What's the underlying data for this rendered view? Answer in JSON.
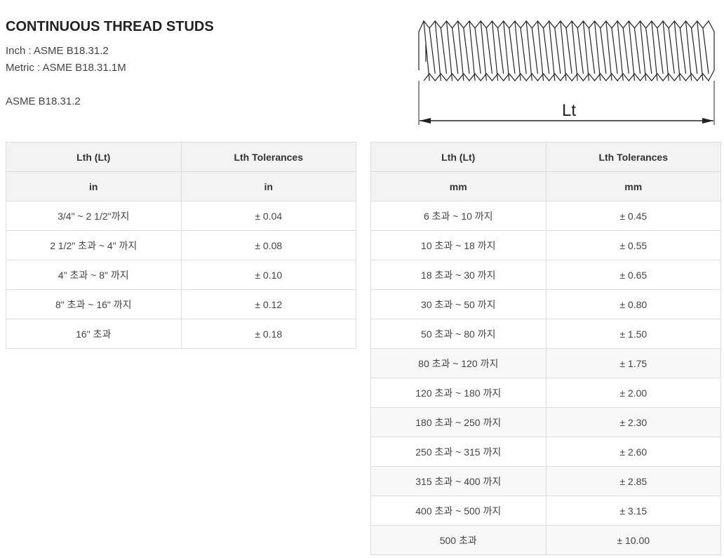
{
  "header": {
    "title": "CONTINUOUS THREAD STUDS",
    "lines": [
      "Inch : ASME B18.31.2",
      "Metric : ASME B18.31.1M"
    ],
    "subtitle": "ASME B18.31.2"
  },
  "figure": {
    "label": "Lt"
  },
  "tables": [
    {
      "columns": [
        "Lth (Lt)",
        "Lth Tolerances"
      ],
      "units": [
        "in",
        "in"
      ],
      "rows": [
        [
          "3/4\" ~ 2 1/2\"까지",
          "± 0.04"
        ],
        [
          "2 1/2\" 초과 ~ 4\" 까지",
          "± 0.08"
        ],
        [
          "4\" 초과 ~ 8\" 까지",
          "± 0.10"
        ],
        [
          "8\" 초과 ~ 16\" 까지",
          "± 0.12"
        ],
        [
          "16\" 초과",
          "± 0.18"
        ]
      ]
    },
    {
      "columns": [
        "Lth (Lt)",
        "Lth Tolerances"
      ],
      "units": [
        "mm",
        "mm"
      ],
      "rows": [
        [
          "6 초과 ~ 10 까지",
          "± 0.45"
        ],
        [
          "10 초과 ~ 18 까지",
          "± 0.55"
        ],
        [
          "18 초과 ~ 30 까지",
          "± 0.65"
        ],
        [
          "30 초과 ~ 50 까지",
          "± 0.80"
        ],
        [
          "50 초과 ~ 80 까지",
          "± 1.50"
        ],
        [
          "80 초과 ~ 120 까지",
          "± 1.75"
        ],
        [
          "120 초과 ~ 180 까지",
          "± 2.00"
        ],
        [
          "180 초과 ~ 250 까지",
          "± 2.30"
        ],
        [
          "250 초과 ~ 315 까지",
          "± 2.60"
        ],
        [
          "315 초과 ~ 400 까지",
          "± 2.85"
        ],
        [
          "400 초과 ~ 500 까지",
          "± 3.15"
        ],
        [
          "500 초과",
          "± 10.00"
        ]
      ]
    }
  ]
}
